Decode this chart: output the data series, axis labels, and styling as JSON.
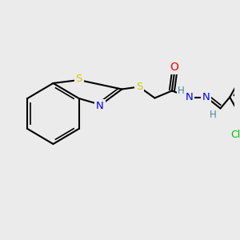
{
  "bg_color": "#EBEBEB",
  "bond_color": "#000000",
  "bond_width": 1.5,
  "atom_colors": {
    "S": "#CCCC00",
    "N": "#0000FF",
    "O": "#FF0000",
    "Cl": "#00BB00",
    "H": "#448899"
  },
  "font_size": 8.5,
  "fig_size": [
    3.0,
    3.0
  ],
  "dpi": 100
}
